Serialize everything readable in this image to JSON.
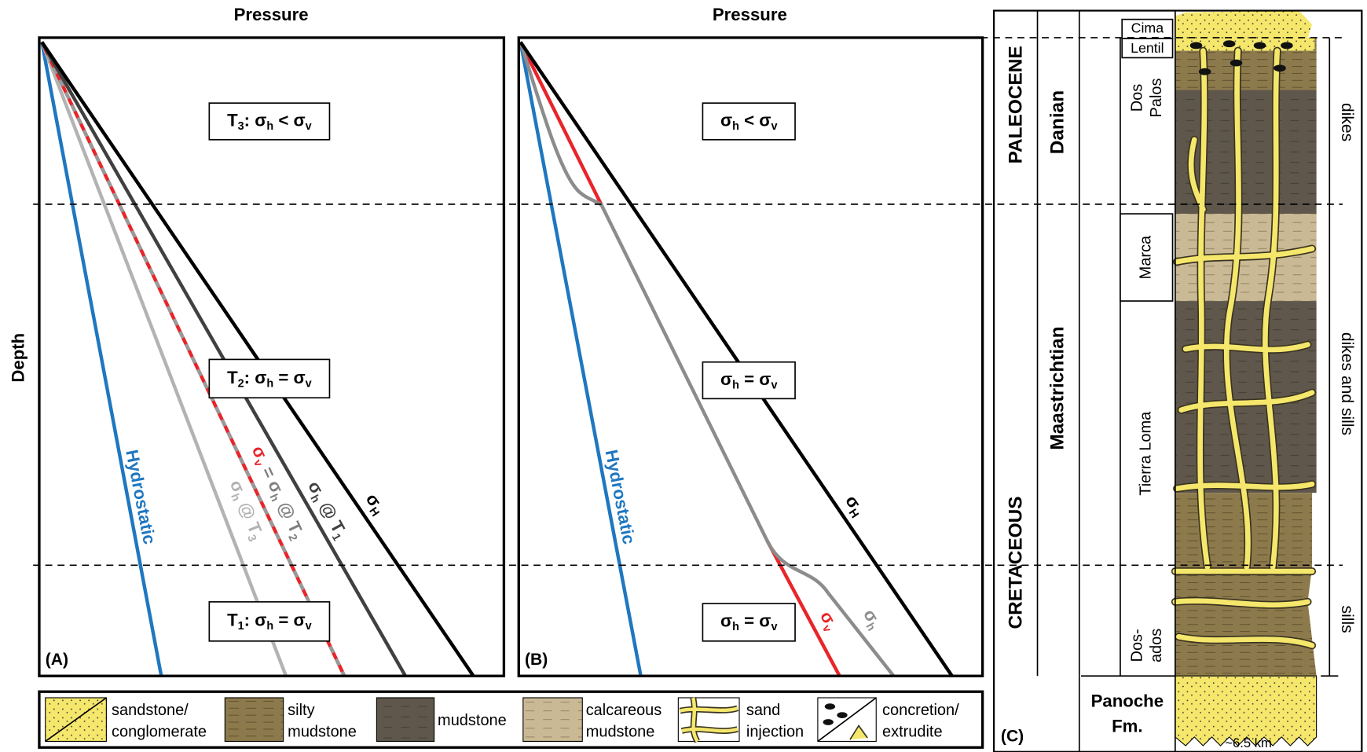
{
  "panel_a": {
    "title": "Pressure",
    "y_label": "Depth",
    "tag": "(A)",
    "boxes": [
      [
        "T",
        "3",
        ": σ",
        "h",
        " < σ",
        "v"
      ],
      [
        "T",
        "2",
        ": σ",
        "h",
        " = σ",
        "v"
      ],
      [
        "T",
        "1",
        ": σ",
        "h",
        " = σ",
        "v"
      ]
    ],
    "hydrostatic": "Hydrostatic",
    "sigma_H": [
      "σ",
      "H"
    ],
    "sigma_h_t3": [
      "σ",
      "h",
      " @ T",
      "3"
    ],
    "sigma_v_eq": [
      "σ",
      "v",
      " = σ",
      "h",
      " @ T",
      "2"
    ],
    "sigma_h_t1": [
      "σ",
      "h",
      " @ T",
      "1"
    ]
  },
  "panel_b": {
    "title": "Pressure",
    "tag": "(B)",
    "boxes": [
      [
        "σ",
        "h",
        " < σ",
        "v"
      ],
      [
        "σ",
        "h",
        " = σ",
        "v"
      ],
      [
        "σ",
        "h",
        " = σ",
        "v"
      ]
    ],
    "hydrostatic": "Hydrostatic",
    "sigma_H": [
      "σ",
      "H"
    ],
    "sigma_v": [
      "σ",
      "v"
    ],
    "sigma_h": [
      "σ",
      "h"
    ]
  },
  "legend": [
    [
      "sandstone/",
      "conglomerate"
    ],
    [
      "silty",
      "mudstone"
    ],
    [
      "mudstone"
    ],
    [
      "calcareous",
      "mudstone"
    ],
    [
      "sand",
      "injection"
    ],
    [
      "concretion/",
      "extrudite"
    ]
  ],
  "panel_c": {
    "tag": "(C)",
    "epochs": [
      "PALEOCENE",
      "CRETACEOUS"
    ],
    "stages": [
      "Danian",
      "Maastrichtian"
    ],
    "formations": {
      "cima": "Cima",
      "lentil": "Lentil",
      "dos_palos": [
        "Dos",
        "Palos"
      ],
      "marca": "Marca",
      "tierra_loma": "Tierra Loma",
      "dos_ados": [
        "Dos-",
        "ados"
      ],
      "panoche": [
        "Panoche",
        "Fm."
      ]
    },
    "intrusions": [
      "dikes",
      "dikes and sills",
      "sills"
    ],
    "scale": "~6.5 km"
  }
}
